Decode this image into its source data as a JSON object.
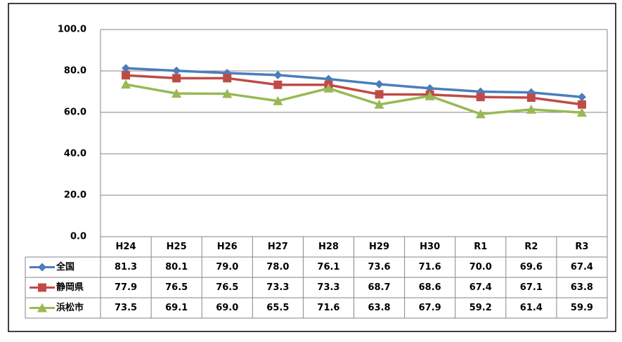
{
  "chart_data": {
    "type": "line",
    "categories": [
      "H24",
      "H25",
      "H26",
      "H27",
      "H28",
      "H29",
      "H30",
      "R1",
      "R2",
      "R3"
    ],
    "series": [
      {
        "name": "全国",
        "color": "#4a7ebb",
        "marker": "diamond",
        "values": [
          81.3,
          80.1,
          79.0,
          78.0,
          76.1,
          73.6,
          71.6,
          70.0,
          69.6,
          67.4
        ],
        "value_labels": [
          "81.3",
          "80.1",
          "79.0",
          "78.0",
          "76.1",
          "73.6",
          "71.6",
          "70.0",
          "69.6",
          "67.4"
        ]
      },
      {
        "name": "静岡県",
        "color": "#be4b48",
        "marker": "square",
        "values": [
          77.9,
          76.5,
          76.5,
          73.3,
          73.3,
          68.7,
          68.6,
          67.4,
          67.1,
          63.8
        ],
        "value_labels": [
          "77.9",
          "76.5",
          "76.5",
          "73.3",
          "73.3",
          "68.7",
          "68.6",
          "67.4",
          "67.1",
          "63.8"
        ]
      },
      {
        "name": "浜松市",
        "color": "#98b954",
        "marker": "triangle",
        "values": [
          73.5,
          69.1,
          69.0,
          65.5,
          71.6,
          63.8,
          67.9,
          59.2,
          61.4,
          59.9
        ],
        "value_labels": [
          "73.5",
          "69.1",
          "69.0",
          "65.5",
          "71.6",
          "63.8",
          "67.9",
          "59.2",
          "61.4",
          "59.9"
        ]
      }
    ],
    "ylim": [
      0,
      100
    ],
    "yticks": [
      {
        "value": 0,
        "label": "0.0"
      },
      {
        "value": 20,
        "label": "20.0"
      },
      {
        "value": 40,
        "label": "40.0"
      },
      {
        "value": 60,
        "label": "60.0"
      },
      {
        "value": 80,
        "label": "80.0"
      },
      {
        "value": 100,
        "label": "100.0"
      }
    ],
    "grid": true
  }
}
